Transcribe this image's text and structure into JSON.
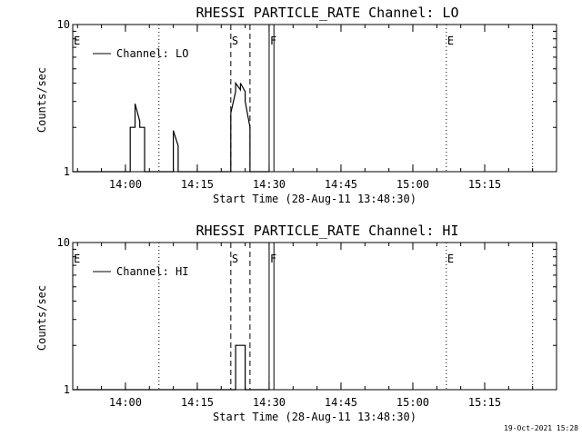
{
  "footer": {
    "timestamp": "19-Oct-2021 15:28"
  },
  "chart_data": [
    {
      "type": "line",
      "title": "RHESSI PARTICLE_RATE Channel: LO",
      "xlabel": "Start Time (28-Aug-11 13:48:30)",
      "ylabel": "Counts/sec",
      "yscale": "log",
      "ylim": [
        1,
        10
      ],
      "xlim": [
        "13:49",
        "15:30"
      ],
      "x_ticks": [
        "14:00",
        "14:15",
        "14:30",
        "14:45",
        "15:00",
        "15:15"
      ],
      "y_ticks": [
        "1",
        "10"
      ],
      "legend": {
        "label": "Channel: LO",
        "placement": "top-left"
      },
      "series": [
        {
          "name": "Channel: LO",
          "x": [
            "13:49",
            "14:01",
            "14:01",
            "14:02",
            "14:02",
            "14:03",
            "14:03",
            "14:04",
            "14:04",
            "14:10",
            "14:10",
            "14:11",
            "14:11",
            "14:22",
            "14:22",
            "14:23",
            "14:23",
            "14:24",
            "14:24",
            "14:25",
            "14:25",
            "14:26",
            "14:26",
            "14:30"
          ],
          "y": [
            1,
            1,
            2,
            2,
            2.9,
            2.2,
            2,
            2,
            1,
            1,
            1.9,
            1.5,
            1,
            1,
            2.5,
            3.5,
            4,
            3.6,
            4,
            3.5,
            3,
            2,
            1,
            1
          ]
        }
      ],
      "markers": [
        {
          "label": "E",
          "time": "13:49",
          "style": "dotted"
        },
        {
          "label": "",
          "time": "14:07",
          "style": "dotted"
        },
        {
          "label": "S",
          "time": "14:22",
          "style": "dashed"
        },
        {
          "label": "",
          "time": "14:26",
          "style": "dashed"
        },
        {
          "label": "F",
          "time": "14:30",
          "style": "solid"
        },
        {
          "label": "",
          "time": "14:31",
          "style": "solid"
        },
        {
          "label": "E",
          "time": "15:07",
          "style": "dotted"
        },
        {
          "label": "",
          "time": "15:25",
          "style": "dotted"
        }
      ]
    },
    {
      "type": "line",
      "title": "RHESSI PARTICLE_RATE Channel: HI",
      "xlabel": "Start Time (28-Aug-11 13:48:30)",
      "ylabel": "Counts/sec",
      "yscale": "log",
      "ylim": [
        1,
        10
      ],
      "xlim": [
        "13:49",
        "15:30"
      ],
      "x_ticks": [
        "14:00",
        "14:15",
        "14:30",
        "14:45",
        "15:00",
        "15:15"
      ],
      "y_ticks": [
        "1",
        "10"
      ],
      "legend": {
        "label": "Channel: HI",
        "placement": "top-left"
      },
      "series": [
        {
          "name": "Channel: HI",
          "x": [
            "13:49",
            "14:23",
            "14:23",
            "14:25",
            "14:25",
            "14:30"
          ],
          "y": [
            1,
            1,
            2,
            2,
            1,
            1
          ]
        }
      ],
      "markers": [
        {
          "label": "E",
          "time": "13:49",
          "style": "dotted"
        },
        {
          "label": "",
          "time": "14:07",
          "style": "dotted"
        },
        {
          "label": "S",
          "time": "14:22",
          "style": "dashed"
        },
        {
          "label": "",
          "time": "14:26",
          "style": "dashed"
        },
        {
          "label": "F",
          "time": "14:30",
          "style": "solid"
        },
        {
          "label": "",
          "time": "14:31",
          "style": "solid"
        },
        {
          "label": "E",
          "time": "15:07",
          "style": "dotted"
        },
        {
          "label": "",
          "time": "15:25",
          "style": "dotted"
        }
      ]
    }
  ]
}
